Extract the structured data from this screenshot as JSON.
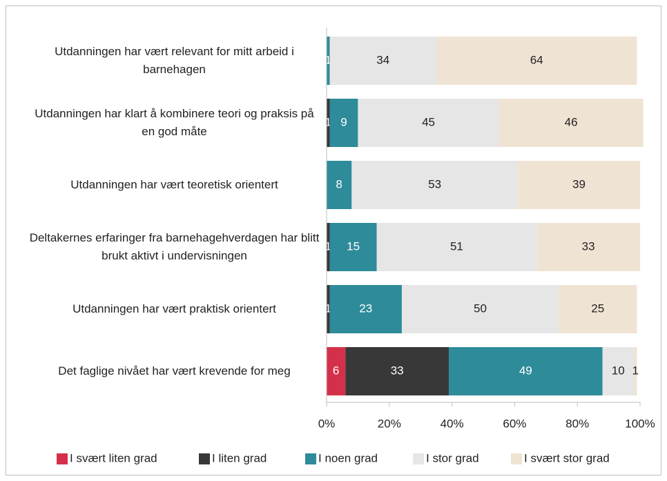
{
  "chart_data": {
    "type": "stacked_bar_horizontal",
    "categories": [
      "Utdanningen har vært relevant for mitt arbeid i barnehagen",
      "Utdanningen har klart å kombinere teori og praksis på en god måte",
      "Utdanningen har vært teoretisk orientert",
      "Deltakernes erfaringer fra barnehagehverdagen har blitt brukt aktivt i undervisningen",
      "Utdanningen har vært praktisk orientert",
      "Det faglige nivået har vært krevende for meg"
    ],
    "series": [
      {
        "name": "I svært liten grad",
        "color": "#d4304a",
        "values": [
          null,
          null,
          null,
          null,
          null,
          6
        ]
      },
      {
        "name": "I liten grad",
        "color": "#383838",
        "values": [
          null,
          1,
          null,
          1,
          1,
          33
        ]
      },
      {
        "name": "I noen grad",
        "color": "#2e8b9a",
        "values": [
          1,
          9,
          8,
          15,
          23,
          49
        ]
      },
      {
        "name": "I stor grad",
        "color": "#e6e6e6",
        "values": [
          34,
          45,
          53,
          51,
          50,
          10
        ]
      },
      {
        "name": "I svært stor grad",
        "color": "#efe3d3",
        "values": [
          64,
          46,
          39,
          33,
          25,
          1
        ]
      }
    ],
    "xlim": [
      0,
      100
    ],
    "xticks": [
      {
        "value": 0,
        "label": "0%"
      },
      {
        "value": 20,
        "label": "20%"
      },
      {
        "value": 40,
        "label": "40%"
      },
      {
        "value": 60,
        "label": "60%"
      },
      {
        "value": 80,
        "label": "80%"
      },
      {
        "value": 100,
        "label": "100%"
      }
    ],
    "legend": "bottom"
  }
}
